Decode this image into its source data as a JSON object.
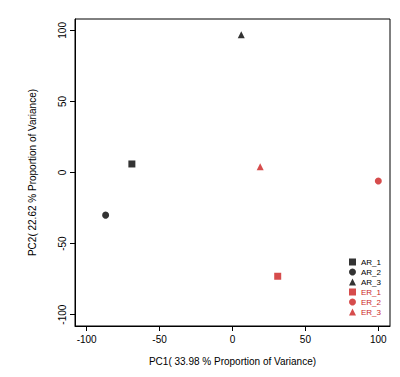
{
  "chart_data": {
    "type": "scatter",
    "x_label": "PC1( 33.98 % Proportion of Variance)",
    "y_label": "PC2( 22.62 % Proportion of Variance)",
    "xlim": [
      -108,
      108
    ],
    "xticks": [
      -100,
      -50,
      0,
      50,
      100
    ],
    "ylim": [
      -108,
      108
    ],
    "yticks": [
      -100,
      -50,
      0,
      50,
      100
    ],
    "legend": "lower right",
    "series": [
      {
        "name": "AR_1",
        "color": "#000000",
        "marker": "square",
        "values": [
          [
            -69,
            6
          ]
        ]
      },
      {
        "name": "AR_2",
        "color": "#000000",
        "marker": "circle",
        "values": [
          [
            -87,
            -30
          ]
        ]
      },
      {
        "name": "AR_3",
        "color": "#000000",
        "marker": "triangle",
        "values": [
          [
            6,
            97
          ]
        ]
      },
      {
        "name": "ER_1",
        "color": "#cc1f1f",
        "marker": "square",
        "values": [
          [
            31,
            -73
          ]
        ]
      },
      {
        "name": "ER_2",
        "color": "#cc1f1f",
        "marker": "circle",
        "values": [
          [
            100,
            -6
          ]
        ]
      },
      {
        "name": "ER_3",
        "color": "#cc1f1f",
        "marker": "triangle",
        "values": [
          [
            19,
            4
          ]
        ]
      }
    ]
  }
}
